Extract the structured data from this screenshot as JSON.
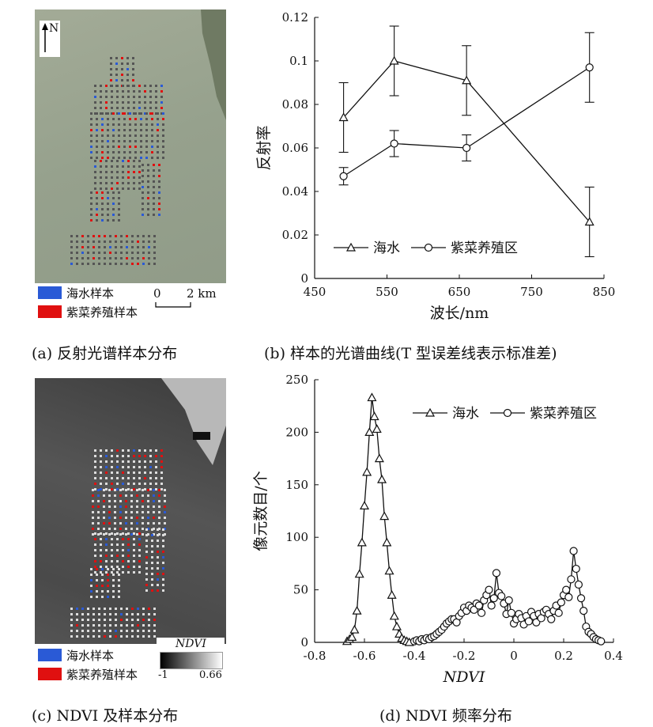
{
  "panel_a": {
    "north": "N",
    "legend": [
      {
        "label": "海水样本",
        "color": "#2a5ad6"
      },
      {
        "label": "紫菜养殖样本",
        "color": "#e01010"
      }
    ],
    "scale_zero": "0",
    "scale_value": "2 km",
    "caption": "(a) 反射光谱样本分布"
  },
  "panel_b": {
    "caption": "(b) 样本的光谱曲线(T 型误差线表示标准差)"
  },
  "panel_c": {
    "legend": [
      {
        "label": "海水样本",
        "color": "#2a5ad6"
      },
      {
        "label": "紫菜养殖样本",
        "color": "#e01010"
      }
    ],
    "colorbar_title": "NDVI",
    "colorbar_min": "-1",
    "colorbar_max": "0.66",
    "caption": "(c) NDVI 及样本分布"
  },
  "panel_d": {
    "caption": "(d) NDVI 频率分布"
  },
  "chart_data": [
    {
      "type": "line",
      "xlabel": "波长/nm",
      "ylabel": "反射率",
      "xlim": [
        450,
        850
      ],
      "ylim": [
        0,
        0.12
      ],
      "xticks": [
        "450",
        "550",
        "650",
        "750",
        "850"
      ],
      "yticks": [
        "0",
        "0.02",
        "0.04",
        "0.06",
        "0.08",
        "0.1",
        "0.12"
      ],
      "legend_position": "bottom-left",
      "series": [
        {
          "name": "海水",
          "marker": "triangle",
          "x": [
            490,
            560,
            660,
            830
          ],
          "y": [
            0.074,
            0.1,
            0.091,
            0.026
          ],
          "err": [
            0.016,
            0.016,
            0.016,
            0.016
          ]
        },
        {
          "name": "紫菜养殖区",
          "marker": "circle",
          "x": [
            490,
            560,
            660,
            830
          ],
          "y": [
            0.047,
            0.062,
            0.06,
            0.097
          ],
          "err": [
            0.004,
            0.006,
            0.006,
            0.016
          ]
        }
      ]
    },
    {
      "type": "line",
      "xlabel": "NDVI",
      "ylabel": "像元数目/个",
      "xlim": [
        -0.8,
        0.4
      ],
      "ylim": [
        0,
        250
      ],
      "xticks": [
        "-0.8",
        "-0.6",
        "-0.4",
        "-0.2",
        "0",
        "0.2",
        "0.4"
      ],
      "yticks": [
        "0",
        "50",
        "100",
        "150",
        "200",
        "250"
      ],
      "legend_position": "top-right",
      "series": [
        {
          "name": "海水",
          "marker": "triangle",
          "x": [
            -0.67,
            -0.66,
            -0.65,
            -0.64,
            -0.63,
            -0.62,
            -0.61,
            -0.6,
            -0.59,
            -0.58,
            -0.57,
            -0.56,
            -0.55,
            -0.54,
            -0.53,
            -0.52,
            -0.51,
            -0.5,
            -0.49,
            -0.48,
            -0.47,
            -0.46,
            -0.45,
            -0.44,
            -0.43,
            -0.42
          ],
          "y": [
            1,
            3,
            5,
            12,
            30,
            65,
            95,
            130,
            162,
            200,
            233,
            215,
            203,
            175,
            155,
            120,
            95,
            68,
            45,
            25,
            15,
            8,
            4,
            2,
            1,
            0
          ]
        },
        {
          "name": "紫菜养殖区",
          "marker": "circle",
          "x": [
            -0.4,
            -0.39,
            -0.38,
            -0.37,
            -0.36,
            -0.35,
            -0.34,
            -0.33,
            -0.32,
            -0.31,
            -0.3,
            -0.29,
            -0.28,
            -0.27,
            -0.26,
            -0.25,
            -0.24,
            -0.23,
            -0.22,
            -0.21,
            -0.2,
            -0.19,
            -0.18,
            -0.17,
            -0.16,
            -0.15,
            -0.14,
            -0.13,
            -0.12,
            -0.11,
            -0.1,
            -0.09,
            -0.08,
            -0.07,
            -0.06,
            -0.05,
            -0.04,
            -0.03,
            -0.02,
            -0.01,
            0,
            0.01,
            0.02,
            0.03,
            0.04,
            0.05,
            0.06,
            0.07,
            0.08,
            0.09,
            0.1,
            0.11,
            0.12,
            0.13,
            0.14,
            0.15,
            0.16,
            0.17,
            0.18,
            0.19,
            0.2,
            0.21,
            0.22,
            0.23,
            0.24,
            0.25,
            0.26,
            0.27,
            0.28,
            0.29,
            0.3,
            0.31,
            0.32,
            0.33,
            0.34,
            0.35
          ],
          "y": [
            1,
            2,
            1,
            3,
            2,
            4,
            3,
            5,
            6,
            8,
            10,
            12,
            15,
            18,
            20,
            22,
            22,
            19,
            25,
            28,
            33,
            30,
            35,
            33,
            31,
            37,
            35,
            28,
            40,
            45,
            50,
            35,
            42,
            66,
            47,
            44,
            37,
            27,
            40,
            28,
            18,
            22,
            27,
            23,
            17,
            25,
            20,
            29,
            25,
            19,
            27,
            23,
            29,
            31,
            27,
            22,
            30,
            35,
            28,
            38,
            45,
            50,
            43,
            60,
            87,
            70,
            55,
            42,
            30,
            15,
            10,
            8,
            5,
            3,
            2,
            1
          ]
        }
      ]
    }
  ]
}
